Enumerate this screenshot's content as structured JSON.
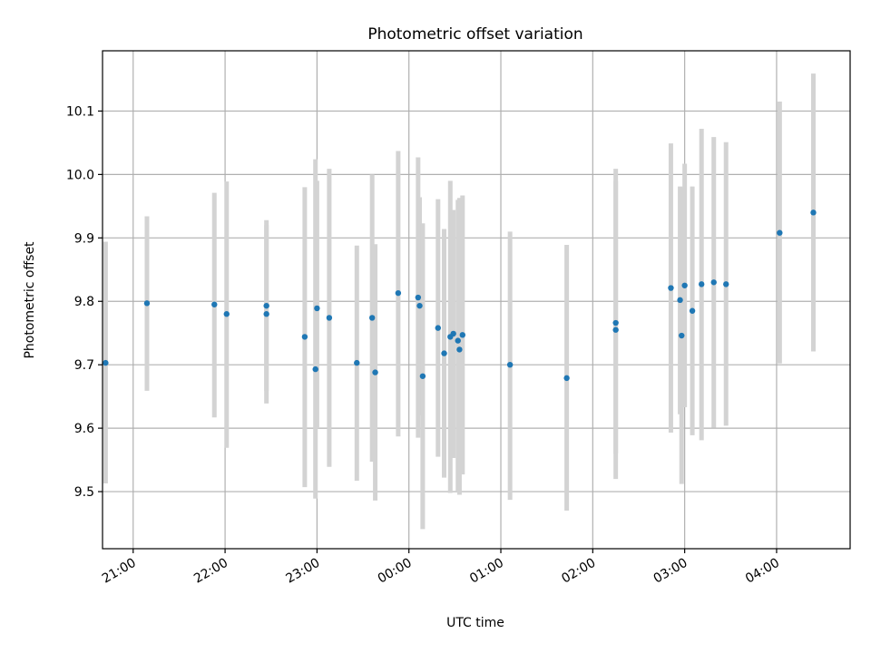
{
  "chart_data": {
    "type": "scatter",
    "title": "Photometric offset variation",
    "xlabel": "UTC time",
    "ylabel": "Photometric offset",
    "x_is_time": true,
    "xlim": [
      "20:40",
      "04:48"
    ],
    "ylim": [
      9.41,
      10.195
    ],
    "xticks": [
      "21:00",
      "22:00",
      "23:00",
      "00:00",
      "01:00",
      "02:00",
      "03:00",
      "04:00"
    ],
    "yticks": [
      "9.5",
      "9.6",
      "9.7",
      "9.8",
      "9.9",
      "10.0",
      "10.1"
    ],
    "grid": true,
    "marker_color": "#1f77b4",
    "errorbar_color": "#d3d3d3",
    "points": [
      {
        "t": "20:42",
        "y": 9.703,
        "lo": 9.513,
        "hi": 9.894
      },
      {
        "t": "21:09",
        "y": 9.797,
        "lo": 9.659,
        "hi": 9.934
      },
      {
        "t": "21:53",
        "y": 9.795,
        "lo": 9.617,
        "hi": 9.971
      },
      {
        "t": "22:01",
        "y": 9.78,
        "lo": 9.569,
        "hi": 9.989
      },
      {
        "t": "22:27",
        "y": 9.793,
        "lo": 9.659,
        "hi": 9.928
      },
      {
        "t": "22:27",
        "y": 9.78,
        "lo": 9.639,
        "hi": 9.92
      },
      {
        "t": "22:52",
        "y": 9.744,
        "lo": 9.507,
        "hi": 9.98
      },
      {
        "t": "22:59",
        "y": 9.693,
        "lo": 9.489,
        "hi": 10.024
      },
      {
        "t": "23:00",
        "y": 9.789,
        "lo": 9.6,
        "hi": 9.99
      },
      {
        "t": "23:08",
        "y": 9.774,
        "lo": 9.539,
        "hi": 10.009
      },
      {
        "t": "23:26",
        "y": 9.703,
        "lo": 9.517,
        "hi": 9.888
      },
      {
        "t": "23:36",
        "y": 9.774,
        "lo": 9.547,
        "hi": 10.0
      },
      {
        "t": "23:38",
        "y": 9.688,
        "lo": 9.486,
        "hi": 9.89
      },
      {
        "t": "23:53",
        "y": 9.813,
        "lo": 9.587,
        "hi": 10.037
      },
      {
        "t": "00:06",
        "y": 9.806,
        "lo": 9.585,
        "hi": 10.027
      },
      {
        "t": "00:07",
        "y": 9.793,
        "lo": 9.62,
        "hi": 9.964
      },
      {
        "t": "00:09",
        "y": 9.682,
        "lo": 9.441,
        "hi": 9.923
      },
      {
        "t": "00:19",
        "y": 9.758,
        "lo": 9.555,
        "hi": 9.961
      },
      {
        "t": "00:23",
        "y": 9.718,
        "lo": 9.522,
        "hi": 9.914
      },
      {
        "t": "00:27",
        "y": 9.744,
        "lo": 9.498,
        "hi": 9.99
      },
      {
        "t": "00:29",
        "y": 9.749,
        "lo": 9.553,
        "hi": 9.944
      },
      {
        "t": "00:32",
        "y": 9.738,
        "lo": 9.5,
        "hi": 9.96
      },
      {
        "t": "00:33",
        "y": 9.724,
        "lo": 9.495,
        "hi": 9.963
      },
      {
        "t": "00:35",
        "y": 9.747,
        "lo": 9.527,
        "hi": 9.967
      },
      {
        "t": "01:06",
        "y": 9.7,
        "lo": 9.487,
        "hi": 9.91
      },
      {
        "t": "01:43",
        "y": 9.679,
        "lo": 9.47,
        "hi": 9.889
      },
      {
        "t": "02:15",
        "y": 9.755,
        "lo": 9.52,
        "hi": 10.009
      },
      {
        "t": "02:15",
        "y": 9.766,
        "lo": 9.56,
        "hi": 9.99
      },
      {
        "t": "02:51",
        "y": 9.821,
        "lo": 9.593,
        "hi": 10.049
      },
      {
        "t": "02:57",
        "y": 9.802,
        "lo": 9.622,
        "hi": 9.981
      },
      {
        "t": "02:58",
        "y": 9.746,
        "lo": 9.512,
        "hi": 9.98
      },
      {
        "t": "03:00",
        "y": 9.825,
        "lo": 9.633,
        "hi": 10.017
      },
      {
        "t": "03:05",
        "y": 9.785,
        "lo": 9.589,
        "hi": 9.981
      },
      {
        "t": "03:11",
        "y": 9.827,
        "lo": 9.581,
        "hi": 10.072
      },
      {
        "t": "03:19",
        "y": 9.83,
        "lo": 9.601,
        "hi": 10.059
      },
      {
        "t": "03:27",
        "y": 9.827,
        "lo": 9.604,
        "hi": 10.051
      },
      {
        "t": "04:02",
        "y": 9.908,
        "lo": 9.702,
        "hi": 10.115
      },
      {
        "t": "04:24",
        "y": 9.94,
        "lo": 9.721,
        "hi": 10.159
      }
    ]
  }
}
